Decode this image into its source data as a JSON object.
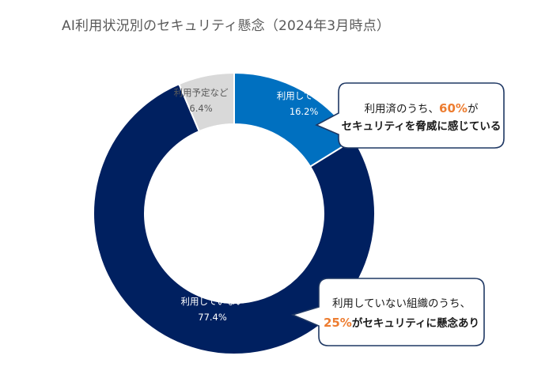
{
  "title": "AI利用状況別のセキュリティ懸念（2024年3月時点）",
  "chart_data": {
    "type": "pie",
    "title": "AI利用状況別のセキュリティ懸念（2024年3月時点）",
    "donut": true,
    "slices": [
      {
        "label": "利用している",
        "value": 16.2,
        "value_label": "16.2%",
        "color": "#0070C0"
      },
      {
        "label": "利用していない",
        "value": 77.4,
        "value_label": "77.4%",
        "color": "#002060"
      },
      {
        "label": "利用予定など",
        "value": 6.4,
        "value_label": "6.4%",
        "color": "#D9D9D9"
      }
    ]
  },
  "callouts": [
    {
      "line1_prefix": "利用済のうち、",
      "line1_highlight": "60%",
      "line1_suffix": "が",
      "line2": "セキュリティを脅威に感じている"
    },
    {
      "line1": "利用していない組織のうち、",
      "line2_highlight": "25%",
      "line2_suffix": "がセキュリティに懸念あり"
    }
  ]
}
